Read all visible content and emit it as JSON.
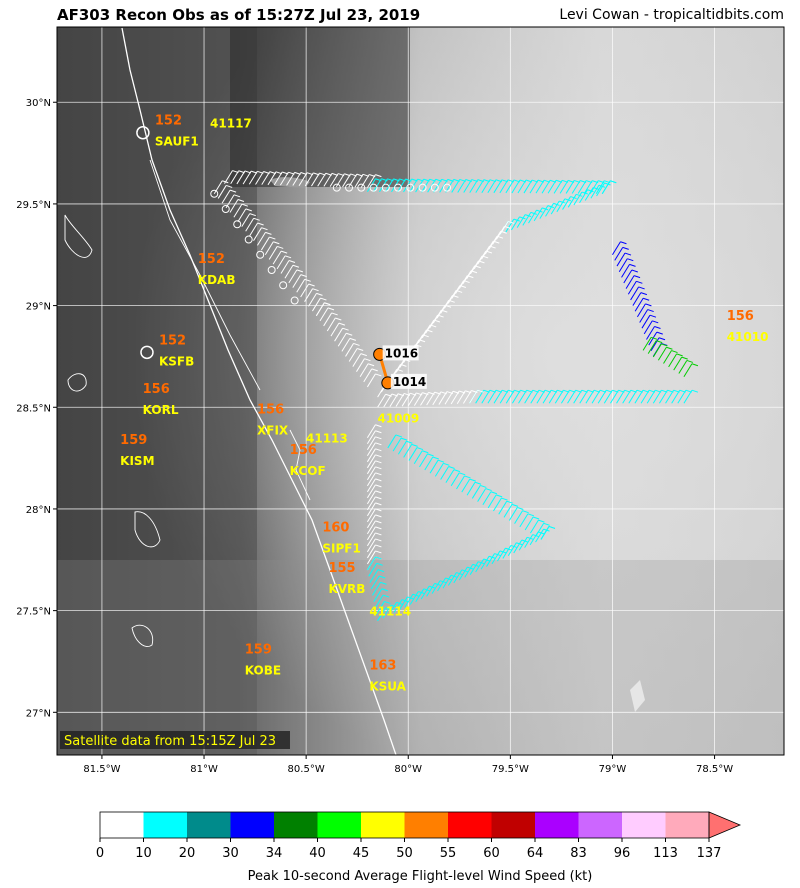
{
  "header": {
    "title": "AF303 Recon Obs as of 15:27Z Jul 23, 2019",
    "credit": "Levi Cowan - tropicaltidbits.com"
  },
  "map": {
    "satellite_note": "Satellite data from 15:15Z Jul 23",
    "lon_ticks": [
      "81.5°W",
      "81°W",
      "80.5°W",
      "80°W",
      "79.5°W",
      "79°W",
      "78.5°W"
    ],
    "lat_ticks": [
      "30°N",
      "29.5°N",
      "29°N",
      "28.5°N",
      "28°N",
      "27.5°N",
      "27°N"
    ],
    "stations": [
      {
        "id": "SAUF1",
        "value": "152",
        "lat": 29.86,
        "lon": -81.27,
        "circle": true
      },
      {
        "id": "41117",
        "value": "",
        "lat": 29.95,
        "lon": -81.0,
        "circle": false
      },
      {
        "id": "KDAB",
        "value": "152",
        "lat": 29.18,
        "lon": -81.06,
        "circle": false
      },
      {
        "id": "KSFB",
        "value": "152",
        "lat": 28.78,
        "lon": -81.25,
        "circle": true
      },
      {
        "id": "KORL",
        "value": "156",
        "lat": 28.54,
        "lon": -81.33,
        "circle": false
      },
      {
        "id": "KISM",
        "value": "159",
        "lat": 28.29,
        "lon": -81.44,
        "circle": false
      },
      {
        "id": "XFIX",
        "value": "156",
        "lat": 28.44,
        "lon": -80.77,
        "circle": false
      },
      {
        "id": "41113",
        "value": "",
        "lat": 28.4,
        "lon": -80.53,
        "circle": false
      },
      {
        "id": "KCOF",
        "value": "156",
        "lat": 28.24,
        "lon": -80.61,
        "circle": false
      },
      {
        "id": "41009",
        "value": "",
        "lat": 28.5,
        "lon": -80.18,
        "circle": false
      },
      {
        "id": "SIPF1",
        "value": "160",
        "lat": 27.86,
        "lon": -80.45,
        "circle": false
      },
      {
        "id": "KVRB",
        "value": "155",
        "lat": 27.66,
        "lon": -80.42,
        "circle": false
      },
      {
        "id": "41114",
        "value": "",
        "lat": 27.55,
        "lon": -80.22,
        "circle": false
      },
      {
        "id": "KOBE",
        "value": "159",
        "lat": 27.26,
        "lon": -80.83,
        "circle": false
      },
      {
        "id": "KSUA",
        "value": "163",
        "lat": 27.18,
        "lon": -80.22,
        "circle": false
      },
      {
        "id": "41010",
        "value": "156",
        "lat": 28.9,
        "lon": -78.47,
        "circle": false
      }
    ],
    "pressure_obs": [
      {
        "label": "1016",
        "lat": 28.76,
        "lon": -80.14
      },
      {
        "label": "1014",
        "lat": 28.62,
        "lon": -80.1
      }
    ]
  },
  "colorbar": {
    "title": "Peak 10-second Average Flight-level Wind Speed (kt)",
    "ticks": [
      "0",
      "10",
      "20",
      "30",
      "34",
      "40",
      "45",
      "50",
      "55",
      "60",
      "64",
      "83",
      "96",
      "113",
      "137"
    ],
    "colors": [
      "#ffffff",
      "#00ffff",
      "#008b8b",
      "#0000ff",
      "#008000",
      "#00ff00",
      "#ffff00",
      "#ff7f00",
      "#ff0000",
      "#c00000",
      "#aa00ff",
      "#cc66ff",
      "#ffccff",
      "#ffaabb"
    ],
    "extend_color": "#ff7070"
  },
  "flight_track": [
    {
      "name": "north-leg",
      "color": "#ffffff",
      "from": [
        -80.9,
        29.6
      ],
      "to": [
        -80.2,
        29.58
      ]
    },
    {
      "name": "north-leg-east",
      "color": "#00ffff",
      "from": [
        -80.2,
        29.56
      ],
      "to": [
        -79.05,
        29.55
      ]
    },
    {
      "name": "east-diag-nw",
      "color": "#00ffff",
      "from": [
        -79.55,
        29.35
      ],
      "to": [
        -79.05,
        29.55
      ]
    },
    {
      "name": "east-descent",
      "color": "#0000ff",
      "from": [
        -79.0,
        29.25
      ],
      "to": [
        -78.8,
        28.75
      ]
    },
    {
      "name": "east-green",
      "color": "#00cc00",
      "from": [
        -78.85,
        28.78
      ],
      "to": [
        -78.65,
        28.65
      ]
    },
    {
      "name": "east-west-leg",
      "color": "#00ffff",
      "from": [
        -79.7,
        28.52
      ],
      "to": [
        -78.65,
        28.52
      ]
    },
    {
      "name": "center-to-ne",
      "color": "#ffffff",
      "from": [
        -80.15,
        28.55
      ],
      "to": [
        -79.55,
        29.35
      ]
    },
    {
      "name": "center-east",
      "color": "#ffffff",
      "from": [
        -80.15,
        28.5
      ],
      "to": [
        -79.7,
        28.52
      ]
    },
    {
      "name": "se-leg",
      "color": "#00ffff",
      "from": [
        -80.1,
        28.3
      ],
      "to": [
        -79.35,
        27.85
      ]
    },
    {
      "name": "south-leg",
      "color": "#00ffff",
      "from": [
        -80.15,
        27.45
      ],
      "to": [
        -79.35,
        27.85
      ]
    },
    {
      "name": "south-vertical",
      "color": "#ffffff",
      "from": [
        -80.2,
        28.35
      ],
      "to": [
        -80.2,
        27.7
      ]
    },
    {
      "name": "south-vertical-cyan",
      "color": "#00ffff",
      "from": [
        -80.2,
        27.7
      ],
      "to": [
        -80.15,
        27.45
      ]
    },
    {
      "name": "west-diag",
      "color": "#ffffff",
      "from": [
        -80.95,
        29.55
      ],
      "to": [
        -80.45,
        28.95
      ]
    },
    {
      "name": "center-segment",
      "color": "#ffffff",
      "from": [
        -80.45,
        28.95
      ],
      "to": [
        -80.2,
        28.6
      ]
    }
  ]
}
